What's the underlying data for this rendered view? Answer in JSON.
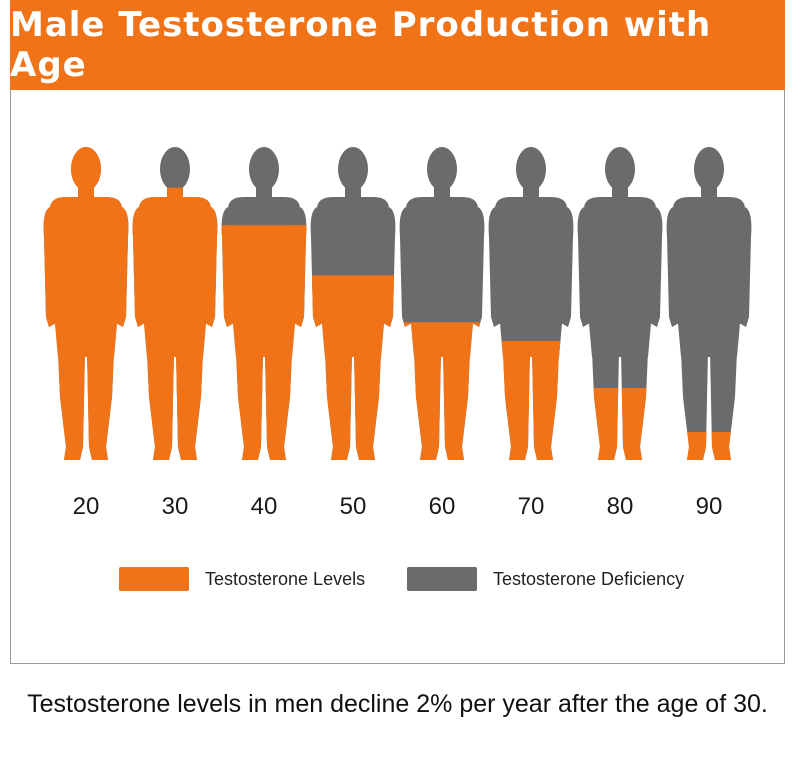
{
  "title": "Male Testosterone Production with Age",
  "caption": "Testosterone levels in men decline 2% per year after the age of 30.",
  "colors": {
    "level": "#f07318",
    "deficiency": "#6b6b6d",
    "header": "#f07318"
  },
  "chart_data": {
    "type": "pictograph",
    "title": "Male Testosterone Production with Age",
    "categories": [
      "20",
      "30",
      "40",
      "50",
      "60",
      "70",
      "80",
      "90"
    ],
    "series": [
      {
        "name": "Testosterone Levels",
        "values": [
          100,
          87,
          75,
          59,
          44,
          38,
          23,
          9
        ]
      },
      {
        "name": "Testosterone Deficiency",
        "values": [
          0,
          13,
          25,
          41,
          56,
          62,
          77,
          91
        ]
      }
    ],
    "ylim": [
      0,
      100
    ],
    "legend": "bottom-center"
  },
  "legend": {
    "items": [
      {
        "label": "Testosterone Levels",
        "color": "#f07318"
      },
      {
        "label": "Testosterone Deficiency",
        "color": "#6b6b6d"
      }
    ]
  }
}
